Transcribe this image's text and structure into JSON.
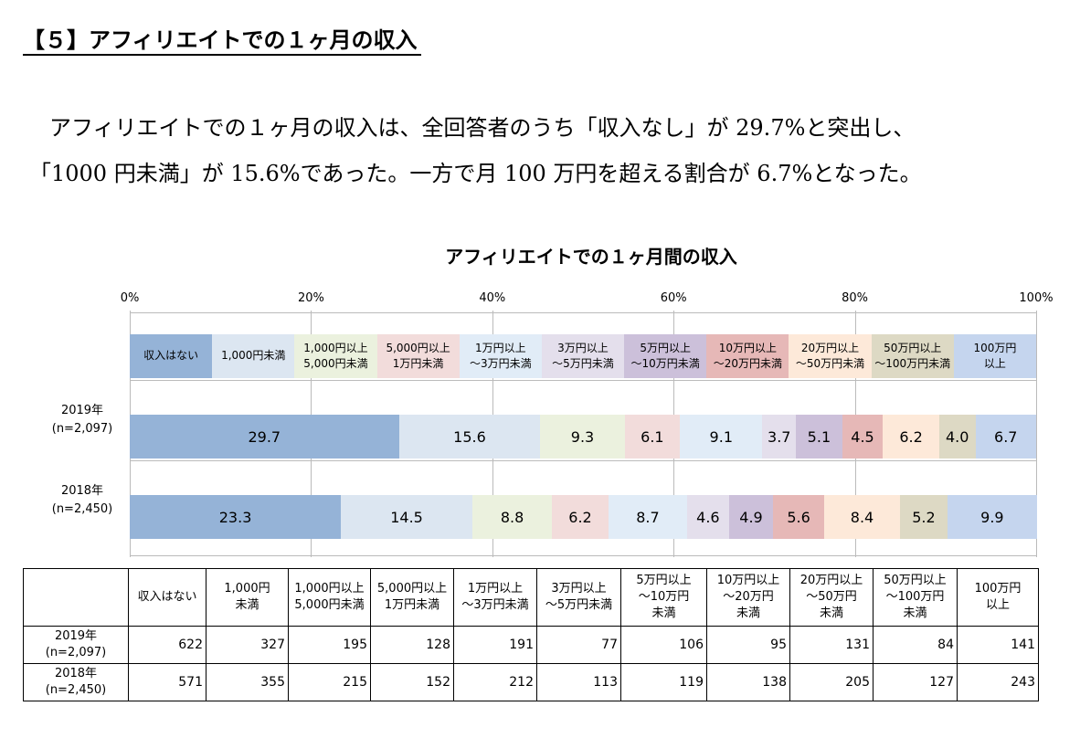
{
  "header": {
    "title": "【５】アフィリエイトでの１ヶ月の収入"
  },
  "paragraph": [
    "アフィリエイトでの１ヶ月の収入は、全回答者のうち「収入なし」が 29.7%と突出し、",
    "「1000 円未満」が 15.6%であった。一方で月 100 万円を超える割合が 6.7%となった。"
  ],
  "chart_data": {
    "type": "stacked_barh",
    "title": "アフィリエイトでの１ヶ月間の収入",
    "categories": [
      "2019年\n(n=2,097)",
      "2018年\n(n=2,450)"
    ],
    "xlim": [
      0,
      100
    ],
    "xticks": [
      {
        "value": 0,
        "label": "0%"
      },
      {
        "value": 20,
        "label": "20%"
      },
      {
        "value": 40,
        "label": "40%"
      },
      {
        "value": 60,
        "label": "60%"
      },
      {
        "value": 80,
        "label": "80%"
      },
      {
        "value": 100,
        "label": "100%"
      }
    ],
    "grid": true,
    "series": [
      {
        "name": "収入はない",
        "color": "#95b3d7",
        "values": [
          29.7,
          23.3
        ]
      },
      {
        "name": "1,000円未満",
        "color": "#dce6f1",
        "values": [
          15.6,
          14.5
        ]
      },
      {
        "name": "1,000円以上\n5,000円未満",
        "color": "#ebf1de",
        "values": [
          9.3,
          8.8
        ]
      },
      {
        "name": "5,000円以上\n1万円未満",
        "color": "#f2dcdb",
        "values": [
          6.1,
          6.2
        ]
      },
      {
        "name": "1万円以上\n～3万円未満",
        "color": "#e1ecf7",
        "values": [
          9.1,
          8.7
        ]
      },
      {
        "name": "3万円以上\n～5万円未満",
        "color": "#e4dfec",
        "values": [
          3.7,
          4.6
        ]
      },
      {
        "name": "5万円以上\n～10万円未満",
        "color": "#ccc0da",
        "values": [
          5.1,
          4.9
        ]
      },
      {
        "name": "10万円以上\n～20万円未満",
        "color": "#e6b8b7",
        "values": [
          4.5,
          5.6
        ]
      },
      {
        "name": "20万円以上\n～50万円未満",
        "color": "#fde9d9",
        "values": [
          6.2,
          8.4
        ]
      },
      {
        "name": "50万円以上\n～100万円未満",
        "color": "#ddd9c4",
        "values": [
          4.0,
          5.2
        ],
        "value_labels": [
          "4.0",
          "5.2"
        ]
      },
      {
        "name": "100万円\n以上",
        "color": "#c5d5ee",
        "values": [
          6.7,
          9.9
        ]
      }
    ]
  },
  "table": {
    "header": [
      "収入はない",
      "1,000円\n未満",
      "1,000円以上\n5,000円未満",
      "5,000円以上\n1万円未満",
      "1万円以上\n～3万円未満",
      "3万円以上\n～5万円未満",
      "5万円以上\n～10万円\n未満",
      "10万円以上\n～20万円\n未満",
      "20万円以上\n～50万円\n未満",
      "50万円以上\n～100万円\n未満",
      "100万円\n以上"
    ],
    "rows": [
      {
        "label": "2019年\n(n=2,097)",
        "cells": [
          622,
          327,
          195,
          128,
          191,
          77,
          106,
          95,
          131,
          84,
          141
        ]
      },
      {
        "label": "2018年\n(n=2,450)",
        "cells": [
          571,
          355,
          215,
          152,
          212,
          113,
          119,
          138,
          205,
          127,
          243
        ]
      }
    ]
  }
}
